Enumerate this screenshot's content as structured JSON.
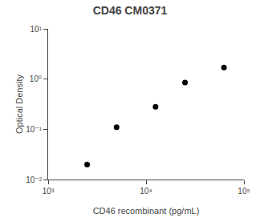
{
  "chart_data": {
    "type": "scatter",
    "title": "CD46 CM0371",
    "xlabel": "CD46 recombinant (pg/mL)",
    "ylabel": "Optical Density",
    "x": [
      2500,
      5000,
      12500,
      25000,
      62500
    ],
    "values": [
      0.02,
      0.11,
      0.28,
      0.85,
      1.7
    ],
    "color": "black",
    "log": true,
    "xlim": [
      1000,
      100000
    ],
    "ylim": [
      0.01,
      10
    ],
    "xticks": [
      {
        "value": 1000,
        "label": "10³"
      },
      {
        "value": 10000,
        "label": "10⁴"
      },
      {
        "value": 100000,
        "label": "10⁵"
      }
    ],
    "yticks": [
      {
        "value": 0.01,
        "label": "10⁻²"
      },
      {
        "value": 0.1,
        "label": "10⁻¹"
      },
      {
        "value": 1,
        "label": "10⁰"
      },
      {
        "value": 10,
        "label": "10¹"
      }
    ],
    "grid": false
  }
}
